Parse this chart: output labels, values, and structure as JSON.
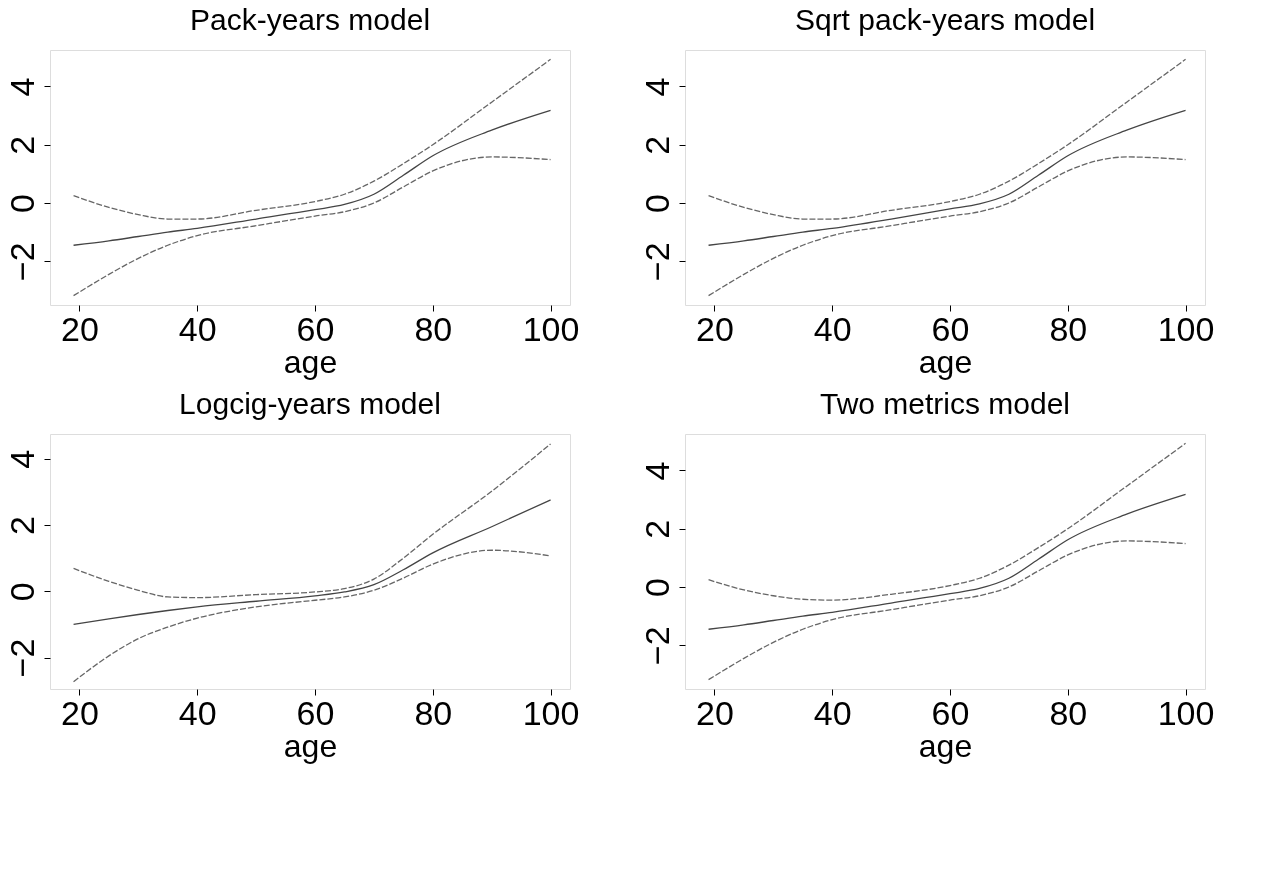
{
  "chart_data": [
    {
      "type": "line",
      "title": "Pack-years model",
      "xlabel": "age",
      "x": [
        19,
        25,
        30,
        35,
        40,
        50,
        60,
        65,
        70,
        75,
        80,
        90,
        100
      ],
      "xlim": [
        15,
        103.3
      ],
      "ylim": [
        -3.5,
        5.25
      ],
      "xticks": [
        20,
        40,
        60,
        80,
        100
      ],
      "yticks": [
        -2,
        0,
        2,
        4
      ],
      "series": [
        {
          "color": "#444444",
          "line_style": "solid",
          "values": [
            -1.45,
            -1.3,
            -1.15,
            -1.0,
            -0.87,
            -0.55,
            -0.23,
            -0.05,
            0.3,
            0.95,
            1.62,
            2.5,
            3.18
          ]
        },
        {
          "color": "#666666",
          "line_style": "dashed",
          "values": [
            0.25,
            -0.15,
            -0.4,
            -0.55,
            -0.55,
            -0.25,
            0.05,
            0.3,
            0.75,
            1.35,
            2.0,
            3.46,
            4.93
          ]
        },
        {
          "color": "#666666",
          "line_style": "dashed",
          "values": [
            -3.18,
            -2.45,
            -1.9,
            -1.45,
            -1.12,
            -0.78,
            -0.45,
            -0.3,
            0.0,
            0.55,
            1.1,
            1.58,
            1.49
          ]
        }
      ]
    },
    {
      "type": "line",
      "title": "Sqrt pack-years model",
      "xlabel": "age",
      "x": [
        19,
        25,
        30,
        35,
        40,
        50,
        60,
        65,
        70,
        75,
        80,
        90,
        100
      ],
      "xlim": [
        15,
        103.3
      ],
      "ylim": [
        -3.5,
        5.25
      ],
      "xticks": [
        20,
        40,
        60,
        80,
        100
      ],
      "yticks": [
        -2,
        0,
        2,
        4
      ],
      "series": [
        {
          "color": "#444444",
          "line_style": "solid",
          "values": [
            -1.45,
            -1.3,
            -1.15,
            -1.0,
            -0.87,
            -0.55,
            -0.2,
            -0.03,
            0.3,
            0.95,
            1.62,
            2.5,
            3.18
          ]
        },
        {
          "color": "#666666",
          "line_style": "dashed",
          "values": [
            0.25,
            -0.15,
            -0.4,
            -0.55,
            -0.55,
            -0.25,
            0.05,
            0.3,
            0.75,
            1.35,
            2.0,
            3.46,
            4.93
          ]
        },
        {
          "color": "#666666",
          "line_style": "dashed",
          "values": [
            -3.18,
            -2.45,
            -1.9,
            -1.45,
            -1.12,
            -0.78,
            -0.45,
            -0.3,
            0.0,
            0.55,
            1.1,
            1.58,
            1.49
          ]
        }
      ]
    },
    {
      "type": "line",
      "title": "Logcig-years model",
      "xlabel": "age",
      "x": [
        19,
        25,
        30,
        35,
        40,
        50,
        60,
        65,
        70,
        75,
        80,
        90,
        100
      ],
      "xlim": [
        15,
        103.3
      ],
      "ylim": [
        -2.95,
        4.75
      ],
      "xticks": [
        20,
        40,
        60,
        80,
        100
      ],
      "yticks": [
        -2,
        0,
        2,
        4
      ],
      "series": [
        {
          "color": "#444444",
          "line_style": "solid",
          "values": [
            -1.0,
            -0.83,
            -0.7,
            -0.58,
            -0.47,
            -0.3,
            -0.14,
            -0.02,
            0.2,
            0.65,
            1.16,
            1.95,
            2.76
          ]
        },
        {
          "color": "#666666",
          "line_style": "dashed",
          "values": [
            0.69,
            0.3,
            0.03,
            -0.17,
            -0.19,
            -0.1,
            -0.02,
            0.08,
            0.37,
            1.0,
            1.72,
            3.02,
            4.45
          ]
        },
        {
          "color": "#666666",
          "line_style": "dashed",
          "values": [
            -2.73,
            -1.95,
            -1.43,
            -1.08,
            -0.81,
            -0.47,
            -0.27,
            -0.17,
            0.03,
            0.4,
            0.82,
            1.24,
            1.07
          ]
        }
      ]
    },
    {
      "type": "line",
      "title": "Two metrics model",
      "xlabel": "age",
      "x": [
        19,
        25,
        30,
        35,
        40,
        50,
        60,
        65,
        70,
        75,
        80,
        90,
        100
      ],
      "xlim": [
        15,
        103.3
      ],
      "ylim": [
        -3.5,
        5.25
      ],
      "xticks": [
        20,
        40,
        60,
        80,
        100
      ],
      "yticks": [
        -2,
        0,
        2,
        4
      ],
      "series": [
        {
          "color": "#444444",
          "line_style": "solid",
          "values": [
            -1.45,
            -1.3,
            -1.15,
            -1.0,
            -0.87,
            -0.55,
            -0.23,
            -0.05,
            0.3,
            0.95,
            1.62,
            2.5,
            3.18
          ]
        },
        {
          "color": "#666666",
          "line_style": "dashed",
          "values": [
            0.25,
            -0.1,
            -0.3,
            -0.42,
            -0.45,
            -0.25,
            0.05,
            0.3,
            0.75,
            1.35,
            2.0,
            3.46,
            4.93
          ]
        },
        {
          "color": "#666666",
          "line_style": "dashed",
          "values": [
            -3.18,
            -2.45,
            -1.9,
            -1.45,
            -1.12,
            -0.78,
            -0.45,
            -0.3,
            0.0,
            0.55,
            1.1,
            1.58,
            1.49
          ]
        }
      ]
    }
  ]
}
